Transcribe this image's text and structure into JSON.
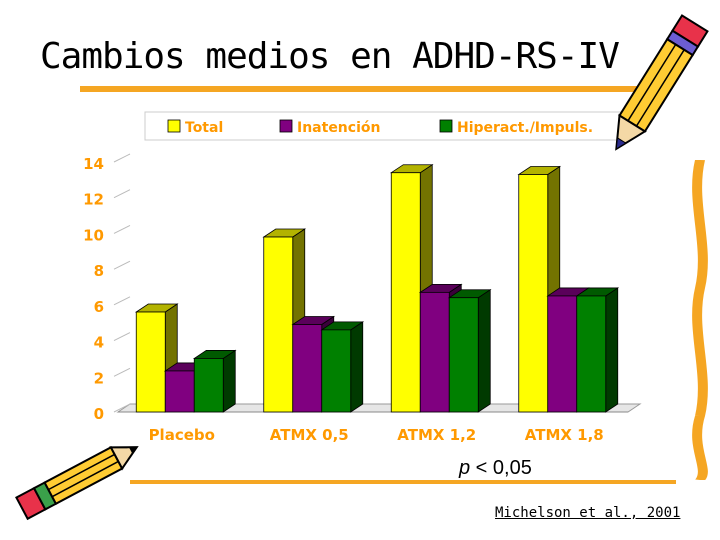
{
  "slide": {
    "title": "Cambios medios en ADHD-RS-IV",
    "p_value_label": "p",
    "p_value_text": " < 0,05",
    "citation": "Michelson et al., 2001",
    "accent_color": "#f5a623"
  },
  "icons": [
    "pencil-icon",
    "pencil-icon"
  ],
  "chart_data": {
    "type": "bar",
    "title": "",
    "xlabel": "",
    "ylabel": "",
    "categories": [
      "Placebo",
      "ATMX 0,5",
      "ATMX 1,2",
      "ATMX 1,8"
    ],
    "series": [
      {
        "name": "Total",
        "values": [
          5.6,
          9.8,
          13.4,
          13.3
        ],
        "color": "#ffff00"
      },
      {
        "name": "Inatención",
        "values": [
          2.3,
          4.9,
          6.7,
          6.5
        ],
        "color": "#800080"
      },
      {
        "name": "Hiperact./Impuls.",
        "values": [
          3.0,
          4.6,
          6.4,
          6.5
        ],
        "color": "#008000"
      }
    ],
    "ylim": [
      0,
      14
    ],
    "yticks": [
      "0",
      "2",
      "4",
      "6",
      "8",
      "10",
      "12",
      "14"
    ],
    "legend_position": "top",
    "grid": false,
    "bar_style": "3d",
    "label_color": "#ff9900"
  }
}
